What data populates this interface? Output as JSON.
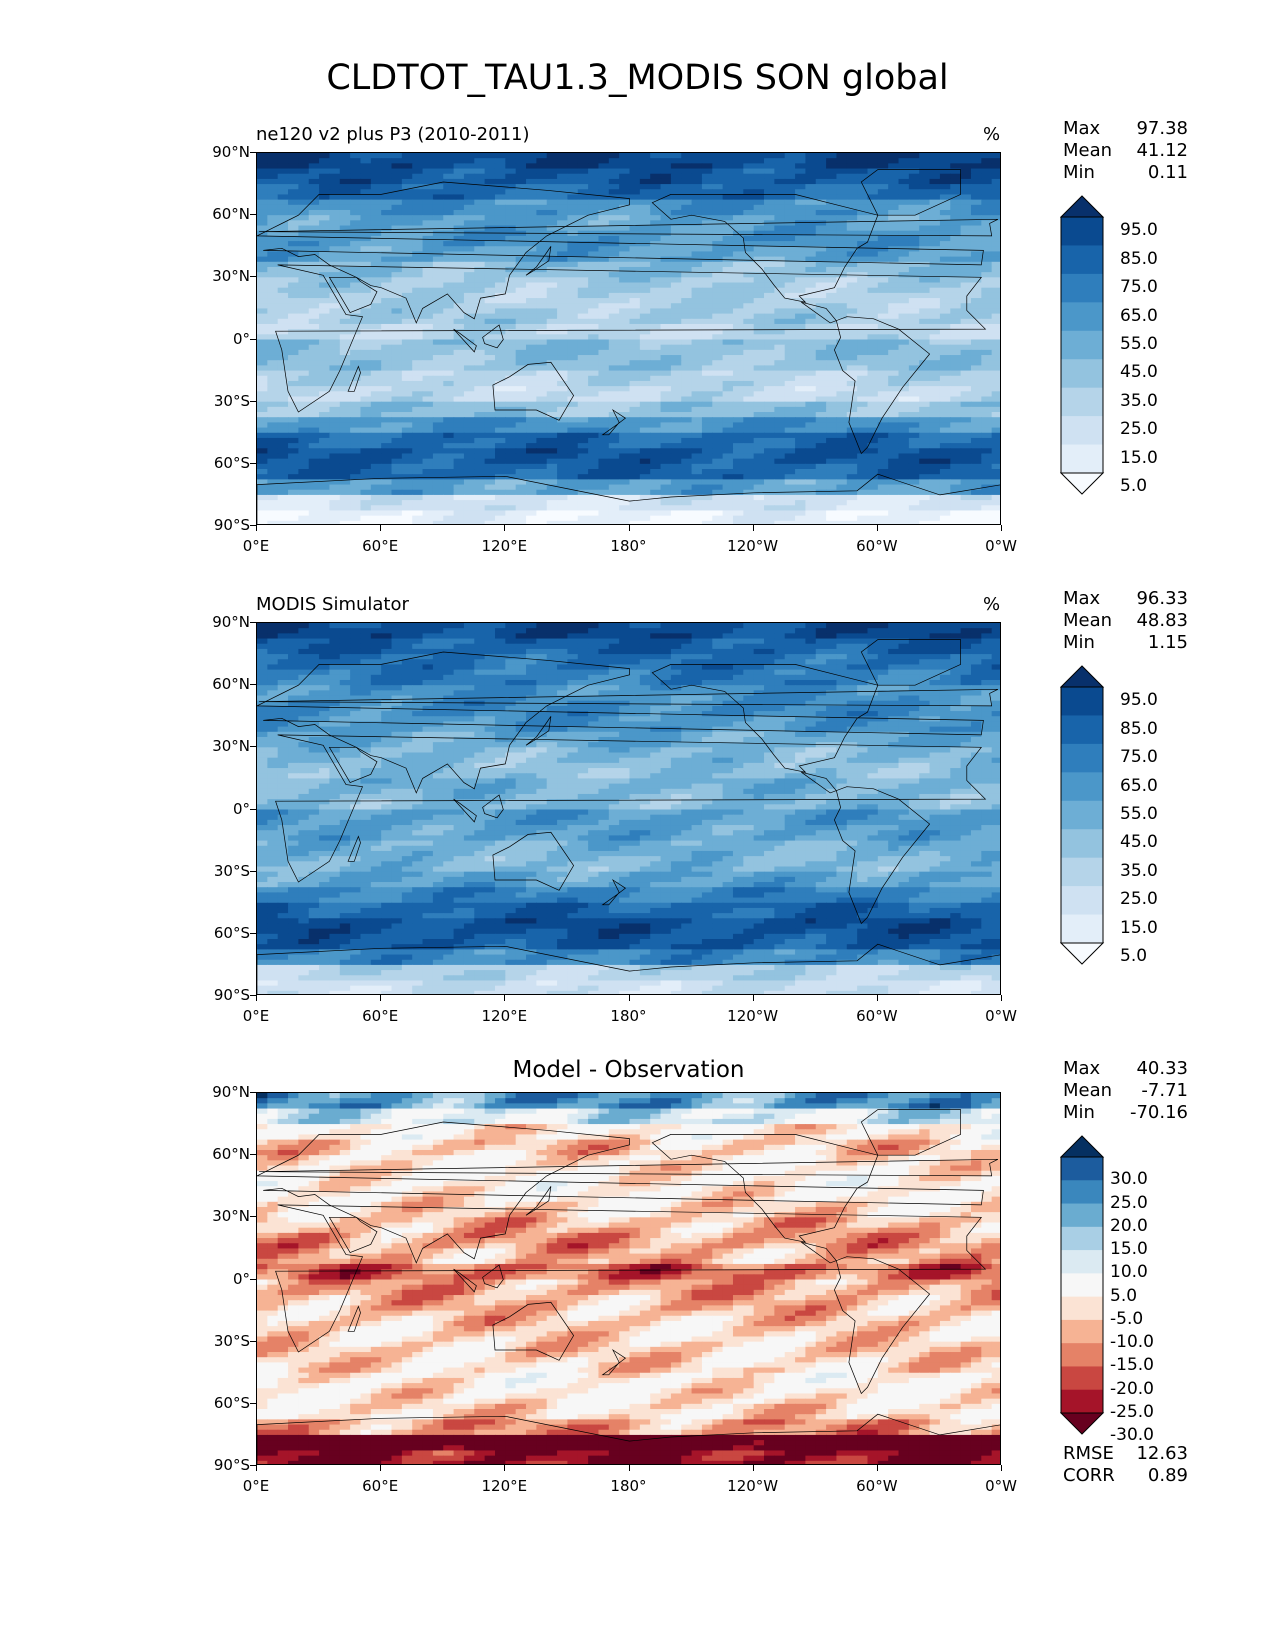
{
  "figure": {
    "title": "CLDTOT_TAU1.3_MODIS SON global"
  },
  "axes": {
    "y_ticks": [
      "90°N",
      "60°N",
      "30°N",
      "0°",
      "30°S",
      "60°S",
      "90°S"
    ],
    "x_ticks": [
      "0°E",
      "60°E",
      "120°E",
      "180°",
      "120°W",
      "60°W",
      "0°W"
    ]
  },
  "colors": {
    "blues": [
      "#f7fbff",
      "#e3eef9",
      "#cfe1f2",
      "#b5d4e9",
      "#93c3df",
      "#6daed5",
      "#4b97c9",
      "#2f7ebc",
      "#1864aa",
      "#0a4a90",
      "#08306b"
    ],
    "rdbu": [
      "#67001f",
      "#a51429",
      "#c94741",
      "#e58267",
      "#f6b394",
      "#fbe3d4",
      "#f7f7f7",
      "#dbeaf2",
      "#a9cfe5",
      "#6aacd0",
      "#3a87bd",
      "#1c5c9e",
      "#053061"
    ],
    "coast": "#000000"
  },
  "chart_data": [
    {
      "type": "heatmap",
      "title": "ne120 v2 plus P3 (2010-2011)",
      "units": "%",
      "stats": {
        "max": "97.38",
        "mean": "41.12",
        "min": "0.11"
      },
      "stat_labels": {
        "max": "Max",
        "mean": "Mean",
        "min": "Min"
      },
      "colorbar": {
        "levels": [
          "95.0",
          "85.0",
          "75.0",
          "65.0",
          "55.0",
          "45.0",
          "35.0",
          "25.0",
          "15.0",
          "5.0"
        ],
        "extend": "both",
        "cmap": "Blues"
      },
      "zonal_profile": [
        92,
        85,
        78,
        62,
        55,
        60,
        55,
        42,
        35,
        32,
        35,
        28,
        42,
        40,
        30,
        25,
        40,
        62,
        78,
        85,
        80,
        55,
        18,
        8
      ],
      "lat_range": [
        -90,
        90
      ],
      "lon_range": [
        0,
        360
      ]
    },
    {
      "type": "heatmap",
      "title": "MODIS Simulator",
      "units": "%",
      "stats": {
        "max": "96.33",
        "mean": "48.83",
        "min": "1.15"
      },
      "stat_labels": {
        "max": "Max",
        "mean": "Mean",
        "min": "Min"
      },
      "colorbar": {
        "levels": [
          "95.0",
          "85.0",
          "75.0",
          "65.0",
          "55.0",
          "45.0",
          "35.0",
          "25.0",
          "15.0",
          "5.0"
        ],
        "extend": "both",
        "cmap": "Blues"
      },
      "zonal_profile": [
        90,
        82,
        75,
        70,
        62,
        65,
        60,
        52,
        45,
        42,
        48,
        45,
        58,
        55,
        48,
        45,
        55,
        68,
        80,
        88,
        84,
        65,
        30,
        22
      ],
      "lat_range": [
        -90,
        90
      ],
      "lon_range": [
        0,
        360
      ]
    },
    {
      "type": "heatmap",
      "title": "Model - Observation",
      "units": "",
      "stats": {
        "max": "40.33",
        "mean": "-7.71",
        "min": "-70.16"
      },
      "stat_labels": {
        "max": "Max",
        "mean": "Mean",
        "min": "Min"
      },
      "metrics": {
        "rmse": "12.63",
        "corr": "0.89"
      },
      "metric_labels": {
        "rmse": "RMSE",
        "corr": "CORR"
      },
      "colorbar": {
        "levels": [
          "30.0",
          "25.0",
          "20.0",
          "15.0",
          "10.0",
          "5.0",
          "-5.0",
          "-10.0",
          "-15.0",
          "-20.0",
          "-25.0",
          "-30.0"
        ],
        "extend": "both",
        "cmap": "RdBu"
      },
      "zonal_profile": [
        20,
        8,
        -5,
        -10,
        -6,
        -4,
        -5,
        -8,
        -12,
        -15,
        -12,
        -20,
        -14,
        -12,
        -10,
        -8,
        -9,
        -8,
        -4,
        -6,
        -8,
        -15,
        -40,
        -30
      ],
      "lat_range": [
        -90,
        90
      ],
      "lon_range": [
        0,
        360
      ]
    }
  ]
}
